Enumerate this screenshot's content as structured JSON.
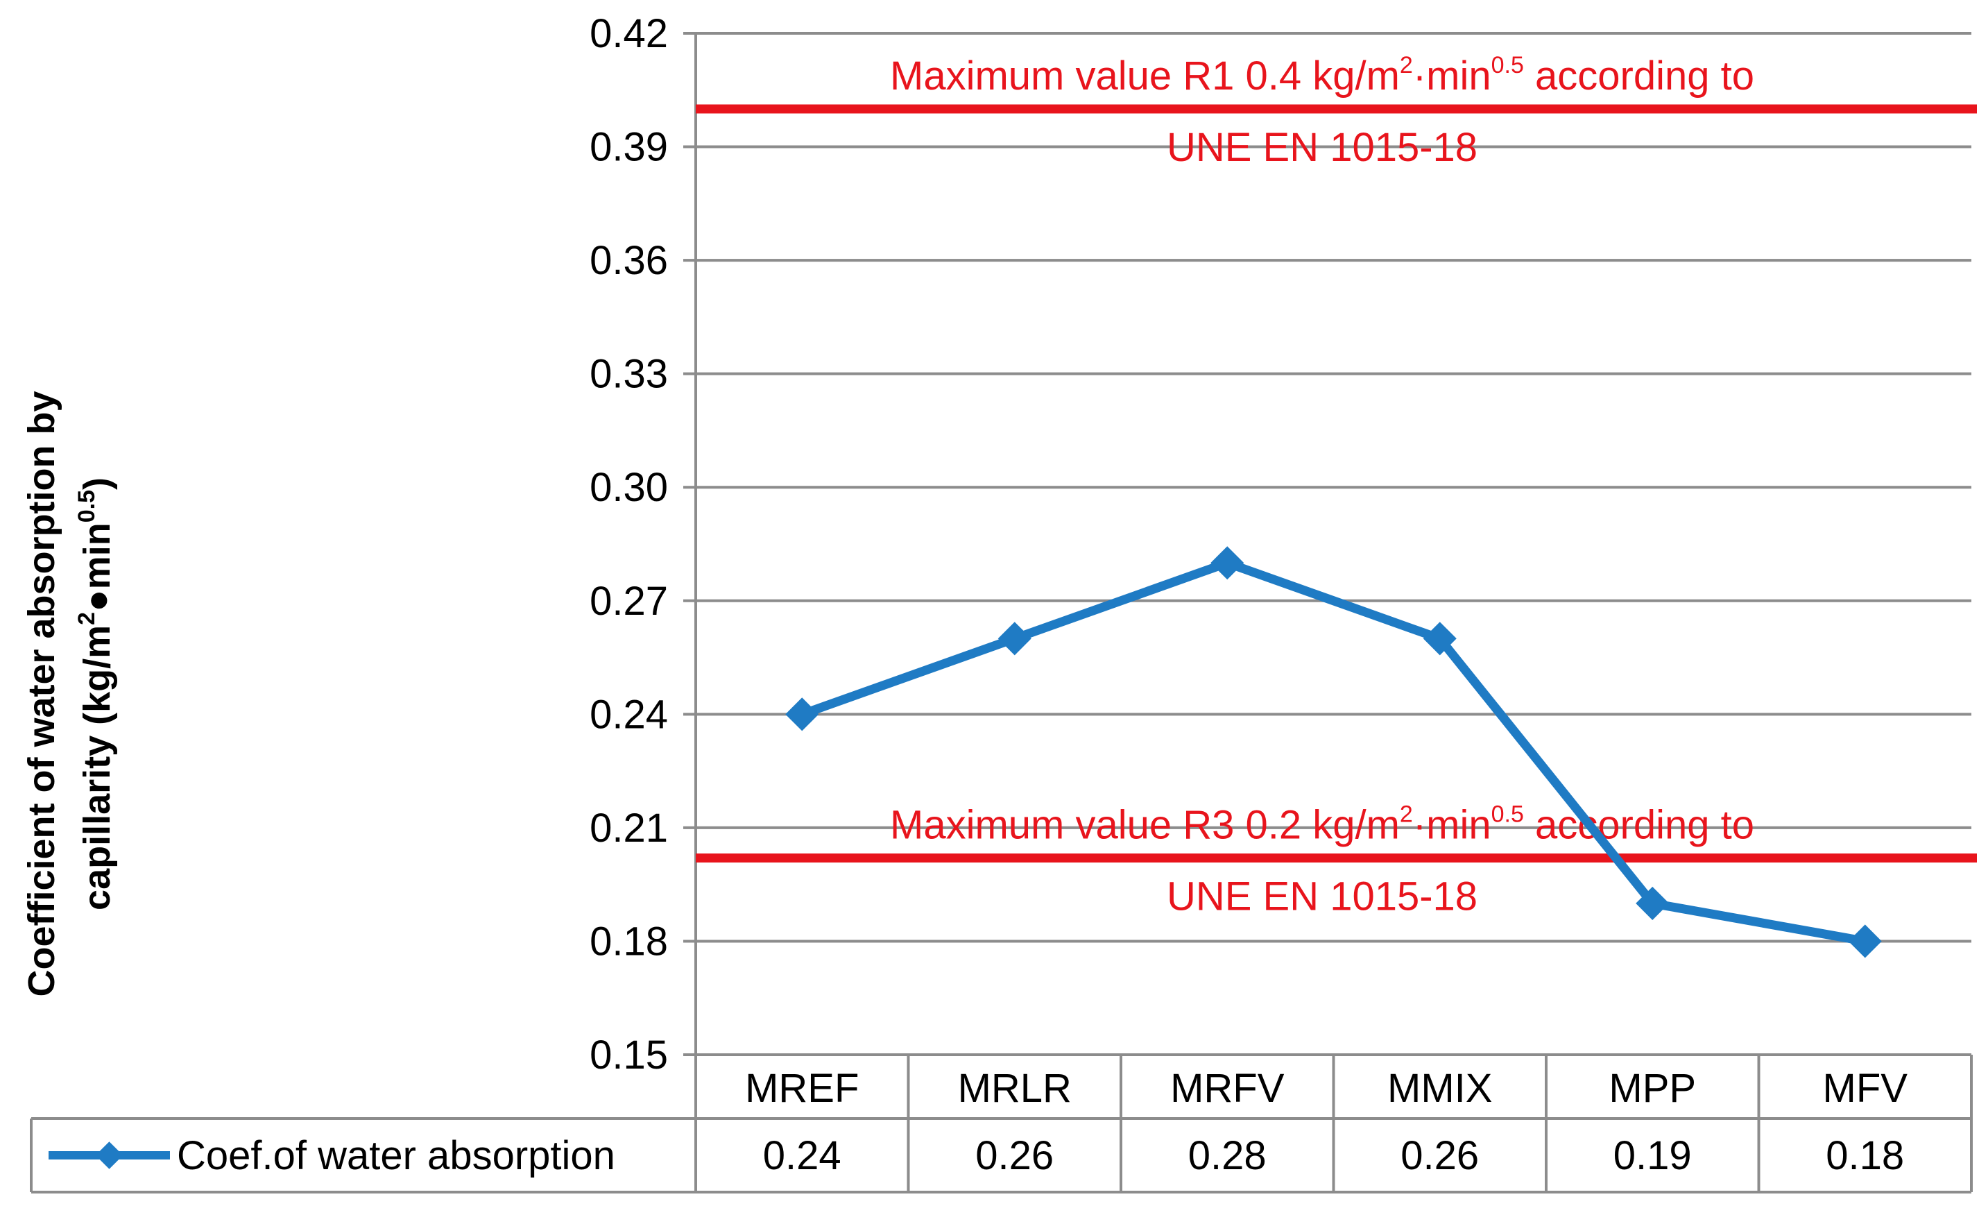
{
  "chart_data": {
    "type": "line",
    "title": "",
    "ylabel_line1": "Coefficient of water absorption by",
    "ylabel_line2_main": "capillarity (kg/m",
    "ylabel_line2_sup1": "2",
    "ylabel_line2_mid": "●min",
    "ylabel_line2_sup2": "0.5",
    "ylabel_line2_end": ")",
    "ylim": [
      0.15,
      0.42
    ],
    "yticks": [
      "0.42",
      "0.39",
      "0.36",
      "0.33",
      "0.30",
      "0.27",
      "0.24",
      "0.21",
      "0.18",
      "0.15"
    ],
    "categories": [
      "MREF",
      "MRLR",
      "MRFV",
      "MMIX",
      "MPP",
      "MFV"
    ],
    "series": [
      {
        "name": "Coef.of water absorption",
        "values": [
          0.24,
          0.26,
          0.28,
          0.26,
          0.19,
          0.18
        ],
        "value_labels": [
          "0.24",
          "0.26",
          "0.28",
          "0.26",
          "0.19",
          "0.18"
        ],
        "color": "#1f7bc4"
      }
    ],
    "reference_lines": [
      {
        "value": 0.4,
        "color": "#e8141c",
        "text_a": "Maximum value R1 0.4 kg/m",
        "sup_a": "2",
        "text_b": "·min",
        "sup_b": "0.5",
        "text_c": " according to",
        "line2": "UNE EN 1015-18"
      },
      {
        "value": 0.202,
        "color": "#e8141c",
        "text_a": "Maximum value R3 0.2 kg/m",
        "sup_a": "2",
        "text_b": "·min",
        "sup_b": "0.5",
        "text_c": " according to",
        "line2": "UNE EN 1015-18"
      }
    ],
    "grid": true,
    "legend": "data-table"
  }
}
